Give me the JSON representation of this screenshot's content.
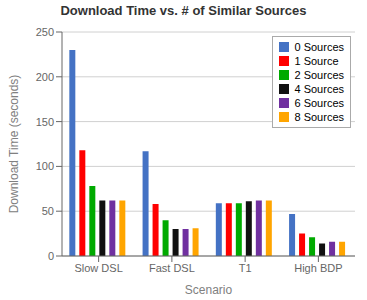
{
  "chart_data": {
    "type": "bar",
    "title": "Download Time vs. # of Similar Sources",
    "xlabel": "Scenario",
    "ylabel": "Download Time (seconds)",
    "categories": [
      "Slow DSL",
      "Fast DSL",
      "T1",
      "High BDP"
    ],
    "series": [
      {
        "name": "0 Sources",
        "color": "#4472c4",
        "values": [
          230,
          117,
          59,
          47
        ]
      },
      {
        "name": "1 Source",
        "color": "#ff0000",
        "values": [
          118,
          58,
          59,
          25
        ]
      },
      {
        "name": "2 Sources",
        "color": "#00aa00",
        "values": [
          78,
          40,
          59,
          21
        ]
      },
      {
        "name": "4 Sources",
        "color": "#111111",
        "values": [
          62,
          30,
          61,
          14
        ]
      },
      {
        "name": "6 Sources",
        "color": "#7030a0",
        "values": [
          62,
          30,
          62,
          16
        ]
      },
      {
        "name": "8 Sources",
        "color": "#ffa500",
        "values": [
          62,
          31,
          62,
          16
        ]
      }
    ],
    "ylim": [
      0,
      250
    ],
    "yticks": [
      0,
      50,
      100,
      150,
      200,
      250
    ],
    "grid": true,
    "legend": "upper right"
  }
}
